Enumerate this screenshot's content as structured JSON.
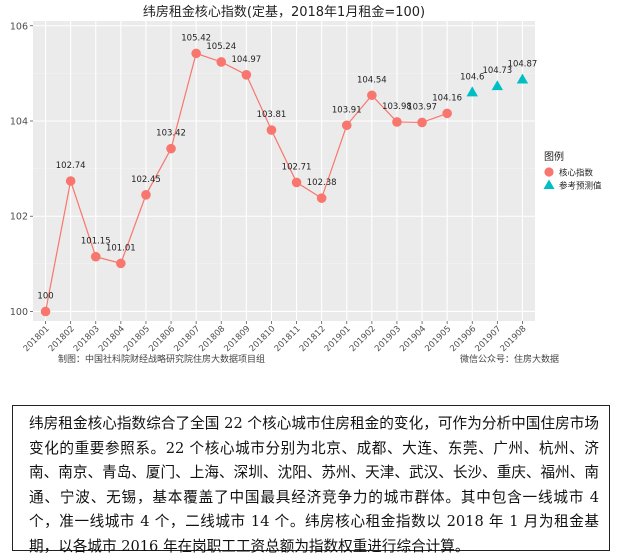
{
  "chart_data": {
    "type": "line",
    "title": "纬房租金核心指数(定基，2018年1月租金=100)",
    "xlabel": "",
    "ylabel": "",
    "ylim": [
      99.8,
      106.1
    ],
    "yticks": [
      100,
      102,
      104,
      106
    ],
    "categories": [
      "201801",
      "201802",
      "201803",
      "201804",
      "201805",
      "201806",
      "201807",
      "201808",
      "201809",
      "201810",
      "201811",
      "201812",
      "201901",
      "201902",
      "201903",
      "201904",
      "201905",
      "201906",
      "201907",
      "201908"
    ],
    "grid": true,
    "legend_position": "right",
    "legend_title": "图例",
    "series": [
      {
        "name": "核心指数",
        "marker": "circle",
        "color": "#F8766D",
        "x": [
          "201801",
          "201802",
          "201803",
          "201804",
          "201805",
          "201806",
          "201807",
          "201808",
          "201809",
          "201810",
          "201811",
          "201812",
          "201901",
          "201902",
          "201903",
          "201904",
          "201905"
        ],
        "values": [
          100,
          102.74,
          101.15,
          101.01,
          102.45,
          103.42,
          105.42,
          105.24,
          104.97,
          103.81,
          102.71,
          102.38,
          103.91,
          104.54,
          103.98,
          103.97,
          104.16
        ],
        "labels": [
          "100",
          "102.74",
          "101.15",
          "101.01",
          "102.45",
          "103.42",
          "105.42",
          "105.24",
          "104.97",
          "103.81",
          "102.71",
          "102.38",
          "103.91",
          "104.54",
          "103.98",
          "103.97",
          "104.16"
        ]
      },
      {
        "name": "参考预测值",
        "marker": "triangle",
        "color": "#00BFC4",
        "x": [
          "201906",
          "201907",
          "201908"
        ],
        "values": [
          104.6,
          104.73,
          104.87
        ],
        "labels": [
          "104.6",
          "104.73",
          "104.87"
        ]
      }
    ]
  },
  "source_left": "制图：中国社科院财经战略研究院住房大数据项目组",
  "source_right": "微信公众号：住房大数据",
  "note_text": "纬房租金核心指数综合了全国 22 个核心城市住房租金的变化，可作为分析中国住房市场变化的重要参照系。22 个核心城市分别为北京、成都、大连、东莞、广州、杭州、济南、南京、青岛、厦门、上海、深圳、沈阳、苏州、天津、武汉、长沙、重庆、福州、南通、宁波、无锡，基本覆盖了中国最具经济竞争力的城市群体。其中包含一线城市 4 个，准一线城市 4 个，二线城市 14 个。纬房核心租金指数以 2018 年 1 月为租金基期，以各城市 2016 年在岗职工工资总额为指数权重进行综合计算。"
}
